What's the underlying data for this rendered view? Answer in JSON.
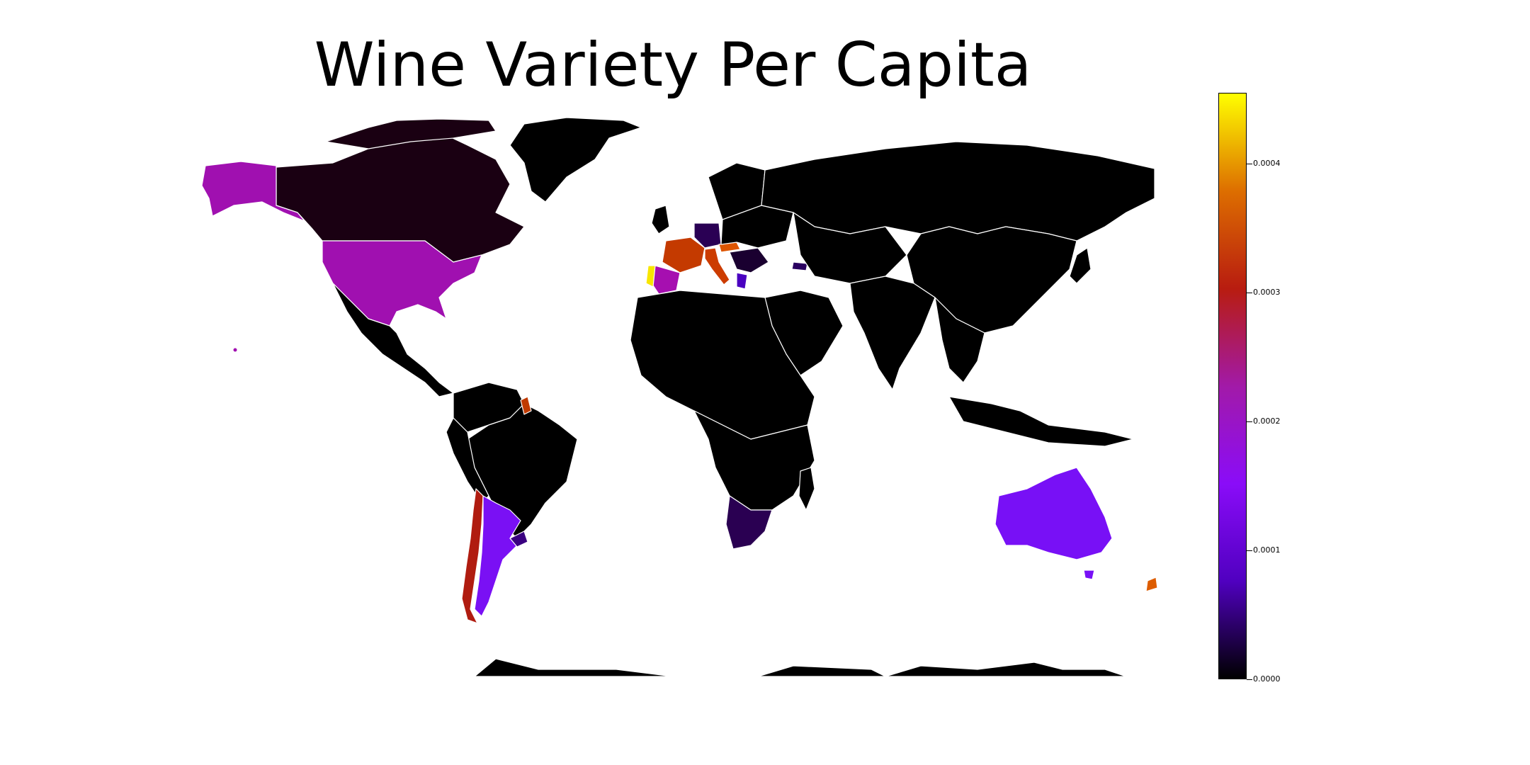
{
  "title": "Wine Variety Per Capita",
  "colorbar": {
    "colormap": "gnuplot",
    "min": 0.0,
    "max": 0.000455,
    "ticks": [
      {
        "value": 0.0,
        "label": "0.0000"
      },
      {
        "value": 0.0001,
        "label": "0.0001"
      },
      {
        "value": 0.0002,
        "label": "0.0002"
      },
      {
        "value": 0.0003,
        "label": "0.0003"
      },
      {
        "value": 0.0004,
        "label": "0.0004"
      }
    ],
    "stops": [
      "#000000",
      "#5000c0",
      "#8a0cf8",
      "#a21aa8",
      "#b81c10",
      "#dd6e00",
      "#ffff00"
    ]
  },
  "map": {
    "background": "#ffffff",
    "border_color": "#ffffff",
    "default_fill": "#000000"
  }
}
